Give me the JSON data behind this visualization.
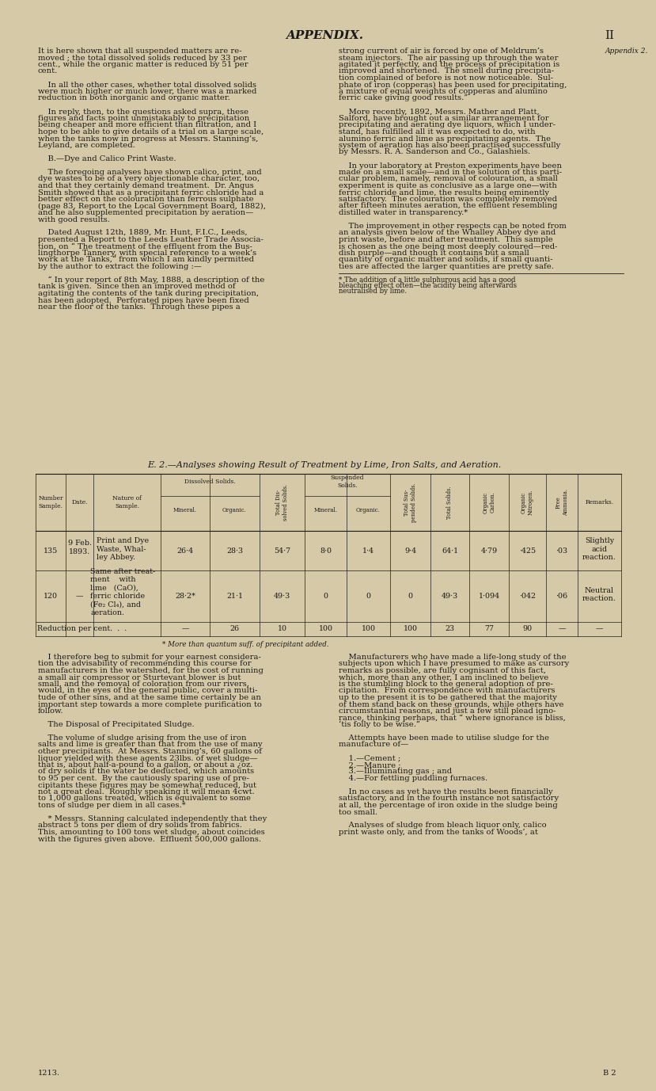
{
  "page_bg": "#d6c9a8",
  "text_color": "#1a1a1a",
  "header_text": "APPENDIX.",
  "header_right": "II",
  "table_title": "E. 2.—Analyses showing Result of Treatment by Lime, Iron Salts, and Aeration.",
  "row1_num": "135",
  "row1_date": "9 Feb.\n1893.",
  "row1_nature": "Print and Dye\nWaste, Whal-\nley Abbey.",
  "row1_mineral": "26·4",
  "row1_organic": "28·3",
  "row1_total_dis": "54·7",
  "row1_susp_min": "8·0",
  "row1_susp_org": "1·4",
  "row1_total_susp": "9·4",
  "row1_total_sol": "64·1",
  "row1_org_carbon": "4·79",
  "row1_org_nit": "·425",
  "row1_free_amm": "·03",
  "row1_remarks": "Slightly\nacid\nreaction.",
  "row2_num": "120",
  "row2_date": "—",
  "row2_nature": "Same after treat-\nment    with\nlime   (CaO),\nferric chloride\n(Fe₂ Cl₄), and\naeration.",
  "row2_mineral": "28·2*",
  "row2_organic": "21·1",
  "row2_total_dis": "49·3",
  "row2_susp_min": "0",
  "row2_susp_org": "0",
  "row2_total_susp": "0",
  "row2_total_sol": "49·3",
  "row2_org_carbon": "1·094",
  "row2_org_nit": "·042",
  "row2_free_amm": "·06",
  "row2_remarks": "Neutral\nreaction.",
  "row3_label": "Reduction per cent.  .  .",
  "row3_mineral": "—",
  "row3_organic": "26",
  "row3_total_dis": "10",
  "row3_susp_min": "100",
  "row3_susp_org": "100",
  "row3_total_susp": "100",
  "row3_total_sol": "23",
  "row3_org_carbon": "77",
  "row3_org_nit": "90",
  "row3_free_amm": "—",
  "row3_remarks": "—",
  "footnote": "* More than quantum suff. of precipitant added.",
  "left_col1_text": "It is here shown that all suspended matters are re-\nmoved ; the total dissolved solids reduced by 33 per\ncent., while the organic matter is reduced by 51 per\ncent.\n\n    In all the other cases, whether total dissolved solids\nwere much higher or much lower, there was a marked\nreduction in both inorganic and organic matter.\n\n    In reply, then, to the questions asked supra, these\nfigures and facts point unmistakably to precipitation\nbeing cheaper and more efficient than filtration, and I\nhope to be able to give details of a trial on a large scale,\nwhen the tanks now in progress at Messrs. Stanning’s,\nLeyland, are completed.\n\n    B.—Dye and Calico Print Waste.\n\n    The foregoing analyses have shown calico, print, and\ndye wastes to be of a very objectionable character, too,\nand that they certainly demand treatment.  Dr. Angus\nSmith showed that as a precipitant ferric chloride had a\nbetter effect on the colouration than ferrous sulphate\n(page 83, Report to the Local Government Board, 1882),\nand he also supplemented precipitation by aeration—\nwith good results.\n\n    Dated August 12th, 1889, Mr. Hunt, F.I.C., Leeds,\npresented a Report to the Leeds Leather Trade Associa-\ntion, on “ The treatment of the effluent from the Bus-\nlingthorpe Tannery, with special reference to a week’s\nwork at the Tanks,” from which I am kindly permitted\nby the author to extract the following :—\n\n    “ In your report of 8th May, 1888, a description of the\ntank is given.  Since then an improved method of\nagitating the contents of the tank during precipitation,\nhas been adopted.  Perforated pipes have been fixed\nnear the floor of the tanks.  Through these pipes a",
  "right_col1_text": "strong current of air is forced by one of Meldrum’s\nsteam injectors.  The air passing up through the water\nagitated it perfectly, and the process of precipitation is\nimproved and shortened.  The smell during precipita-\ntion complained of before is not now noticeable.  Sul-\nphate of iron (copperas) has been used for precipitating,\na mixture of equal weights of copperas and alumino\nferric cake giving good results.”\n\n    More recently, 1892, Messrs. Mather and Platt,\nSalford, have brought out a similar arrangement for\nprecipitating and aerating dye liquors, which I under-\nstand, has fulfilled all it was expected to do, with\nalumino ferric and lime as precipitating agents.  The\nsystem of aeration has also been practised successfully\nby Messrs. R. A. Sanderson and Co., Galashiels.\n\n    In your laboratory at Preston experiments have been\nmade on a small scale—and in the solution of this parti-\ncular problem, namely, removal of colouration, a small\nexperiment is quite as conclusive as a large one—with\nferric chloride and lime, the results being eminently\nsatisfactory.  The colouration was completely removed\nafter fifteen minutes aeration, the effluent resembling\ndistilled water in transparency.*\n\n    The improvement in other respects can be noted from\nan analysis given below of the Whalley Abbey dye and\nprint waste, before and after treatment.  This sample\nis chosen as the one being most deeply coloured—red-\ndish purple—and though it contains but a small\nquantity of organic matter and solids, if small quanti-\nties are affected the larger quantities are pretty safe.",
  "footnote2": "* The addition of a little sulphurous acid has a good\nbleaching effect often—the acidity being afterwards\nneutralised by lime.",
  "left_col2_text": "    I therefore beg to submit for your earnest considera-\ntion the advisability of recommending this course for\nmanufacturers in the watershed, for the cost of running\na small air compressor or Sturtevant blower is but\nsmall, and the removal of coloration from our rivers,\nwould, in the eyes of the general public, cover a multi-\ntude of other sins, and at the same time certainly be an\nimportant step towards a more complete purification to\nfollow.\n\n    The Disposal of Precipitated Sludge.\n\n    The volume of sludge arising from the use of iron\nsalts and lime is greater than that from the use of many\nother precipitants.  At Messrs. Stanning’s, 60 gallons of\nliquor yielded with these agents 23lbs. of wet sludge—\nthat is, about half-a-pound to a gallon, or about a ¿oz.\nof dry solids if the water be deducted, which amounts\nto 95 per cent.  By the cautiously sparing use of pre-\ncipitants these figures may be somewhat reduced, but\nnot a great deal.  Roughly speaking it will mean 4cwt.\nto 1,000 gallons treated, which is equivalent to some\ntons of sludge per diem in all cases.*\n\n    * Messrs. Stanning calculated independently that they\nabstract 5 tons per diem of dry solids from fabrics.\nThis, amounting to 100 tons wet sludge, about coincides\nwith the figures given above.  Effluent 500,000 gallons.",
  "right_col2_text": "    Manufacturers who have made a life-long study of the\nsubjects upon which I have presumed to make as cursory\nremarks as possible, are fully cognisant of this fact,\nwhich, more than any other, I am inclined to believe\nis the stumbling block to the general adoption of pre-\ncipitation.  From correspondence with manufacturers\nup to the present it is to be gathered that the majority\nof them stand back on these grounds, while others have\ncircumstantial reasons, and just a few still plead igno-\nrance, thinking perhaps, that “ where ignorance is bliss,\n‘tis folly to be wise.”\n\n    Attempts have been made to utilise sludge for the\nmanufacture of—\n\n    1.—Cement ;\n    2.—Manure ;\n    3.—Illuminating gas ; and\n    4.—For fettling puddling furnaces.\n\n    In no cases as yet have the results been financially\nsatisfactory, and in the fourth instance not satisfactory\nat all, the percentage of iron oxide in the sludge being\ntoo small.\n\n    Analyses of sludge from bleach liquor only, calico\nprint waste only, and from the tanks of Woods’, at",
  "bottom_left": "1213.",
  "bottom_right": "B 2",
  "appendix_right": "Appendix 2."
}
